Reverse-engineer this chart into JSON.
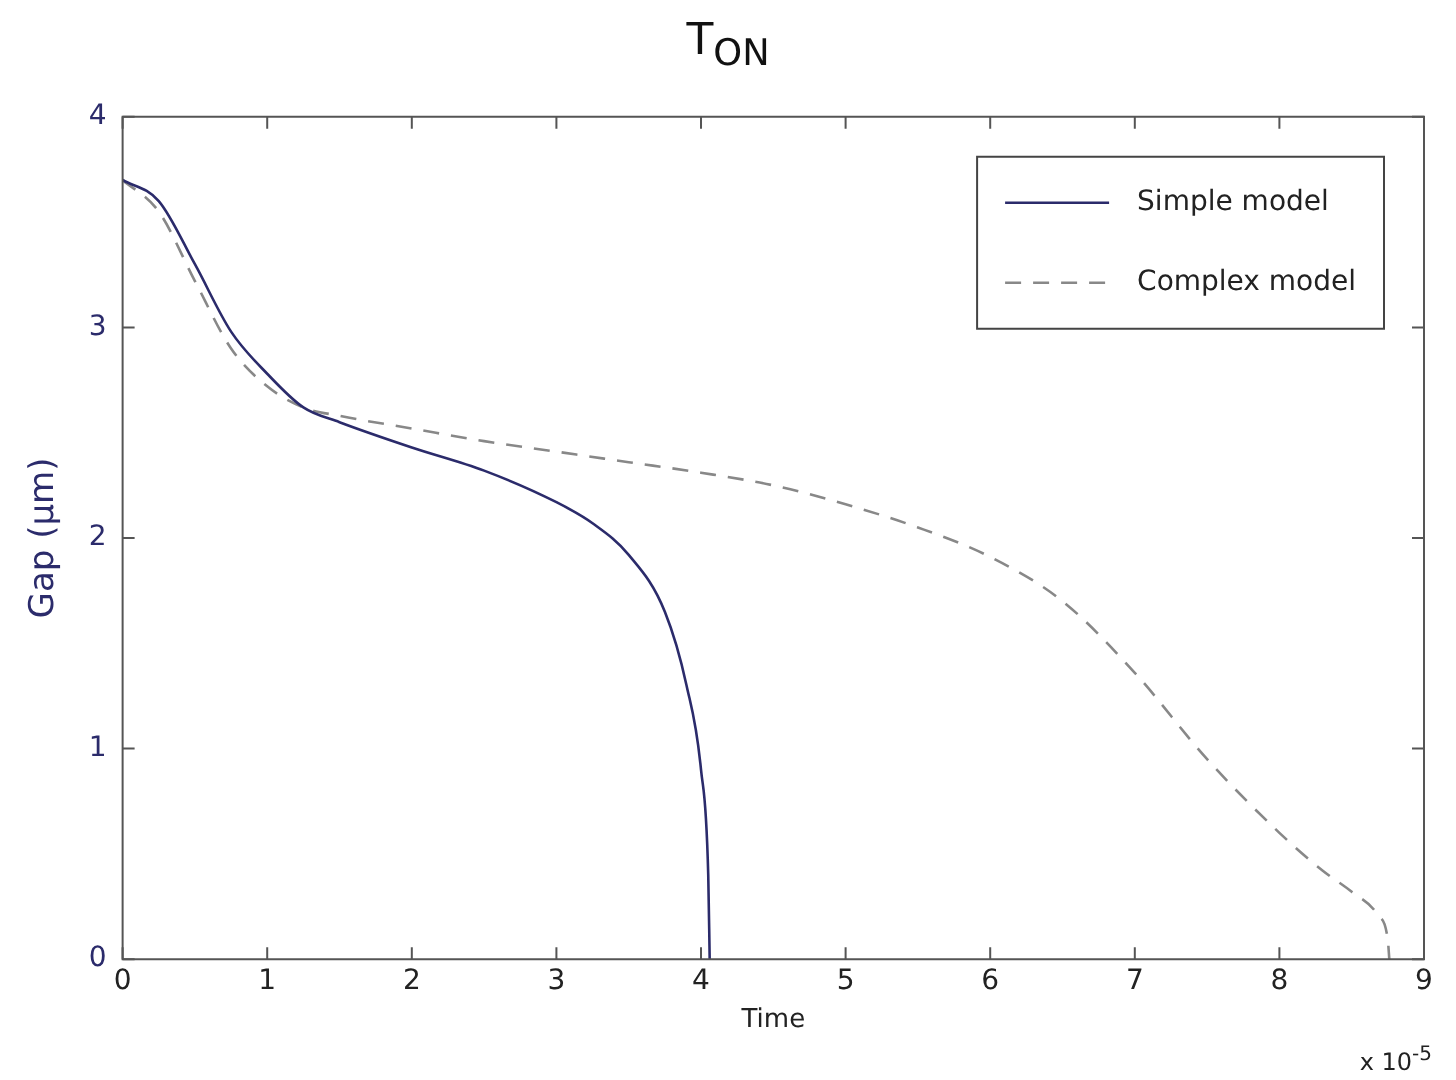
{
  "chart_data": {
    "type": "line",
    "title": "T$_{ON}$",
    "xlabel": "Time",
    "ylabel": "Gap (µm)",
    "annotations": [
      "x 10$^{-5}$"
    ],
    "xlim": [
      0,
      9
    ],
    "xticks": [
      0,
      1,
      2,
      3,
      4,
      5,
      6,
      7,
      8,
      9
    ],
    "ylim": [
      0,
      4
    ],
    "yticks": [
      0,
      1,
      2,
      3,
      4
    ],
    "grid": false,
    "legend": "top right",
    "marker": "none",
    "series": [
      {
        "name": "Simple model",
        "color": "#2b2b6b",
        "line_style": "solid",
        "x": [
          0,
          0.25,
          0.5,
          0.75,
          1,
          1.25,
          1.5,
          2,
          2.5,
          3,
          3.25,
          3.5,
          3.75,
          3.9,
          4.0,
          4.05,
          4.06
        ],
        "values": [
          3.7,
          3.6,
          3.3,
          2.98,
          2.78,
          2.62,
          2.55,
          2.43,
          2.32,
          2.17,
          2.07,
          1.92,
          1.65,
          1.3,
          0.9,
          0.4,
          0
        ]
      },
      {
        "name": "Complex model",
        "color": "#888888",
        "line_style": "dashed",
        "x": [
          0,
          0.25,
          0.5,
          0.75,
          1,
          1.25,
          1.5,
          2,
          2.5,
          3,
          3.5,
          4,
          4.5,
          5,
          5.5,
          6,
          6.5,
          7,
          7.5,
          8,
          8.3,
          8.5,
          8.68,
          8.75,
          8.76
        ],
        "values": [
          3.7,
          3.55,
          3.22,
          2.9,
          2.72,
          2.62,
          2.58,
          2.52,
          2.46,
          2.41,
          2.36,
          2.31,
          2.25,
          2.16,
          2.05,
          1.91,
          1.7,
          1.36,
          0.95,
          0.6,
          0.42,
          0.32,
          0.21,
          0.09,
          0
        ]
      }
    ]
  }
}
